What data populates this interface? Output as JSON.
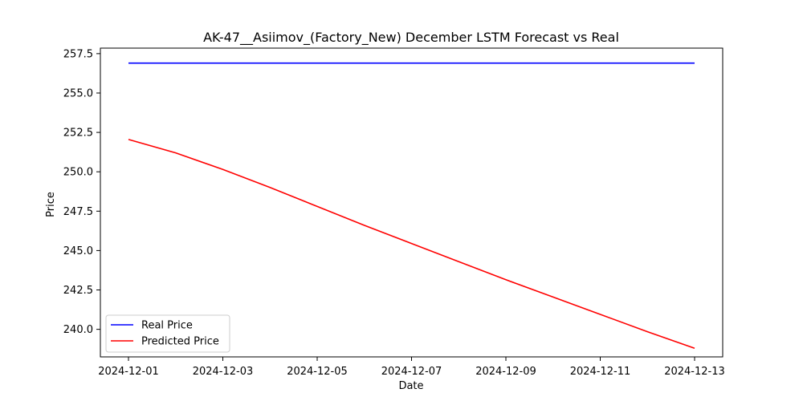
{
  "chart_data": {
    "type": "line",
    "title": "AK-47__Asiimov_(Factory_New) December LSTM Forecast vs Real",
    "xlabel": "Date",
    "ylabel": "Price",
    "x": [
      "2024-12-01",
      "2024-12-02",
      "2024-12-03",
      "2024-12-04",
      "2024-12-05",
      "2024-12-06",
      "2024-12-07",
      "2024-12-08",
      "2024-12-09",
      "2024-12-10",
      "2024-12-11",
      "2024-12-12",
      "2024-12-13"
    ],
    "x_ticks": [
      "2024-12-01",
      "2024-12-03",
      "2024-12-05",
      "2024-12-07",
      "2024-12-09",
      "2024-12-11",
      "2024-12-13"
    ],
    "y_ticks": [
      "240.0",
      "242.5",
      "245.0",
      "247.5",
      "250.0",
      "252.5",
      "255.0",
      "257.5"
    ],
    "ylim": [
      238.25,
      257.85
    ],
    "grid": false,
    "legend_position": "lower-left",
    "series": [
      {
        "name": "Real Price",
        "color": "#0000ff",
        "values": [
          256.9,
          256.9,
          256.9,
          256.9,
          256.9,
          256.9,
          256.9,
          256.9,
          256.9,
          256.9,
          256.9,
          256.9,
          256.9
        ]
      },
      {
        "name": "Predicted Price",
        "color": "#ff0000",
        "values": [
          252.05,
          251.2,
          250.15,
          249.0,
          247.8,
          246.6,
          245.45,
          244.3,
          243.15,
          242.05,
          240.95,
          239.85,
          238.8
        ]
      }
    ]
  }
}
